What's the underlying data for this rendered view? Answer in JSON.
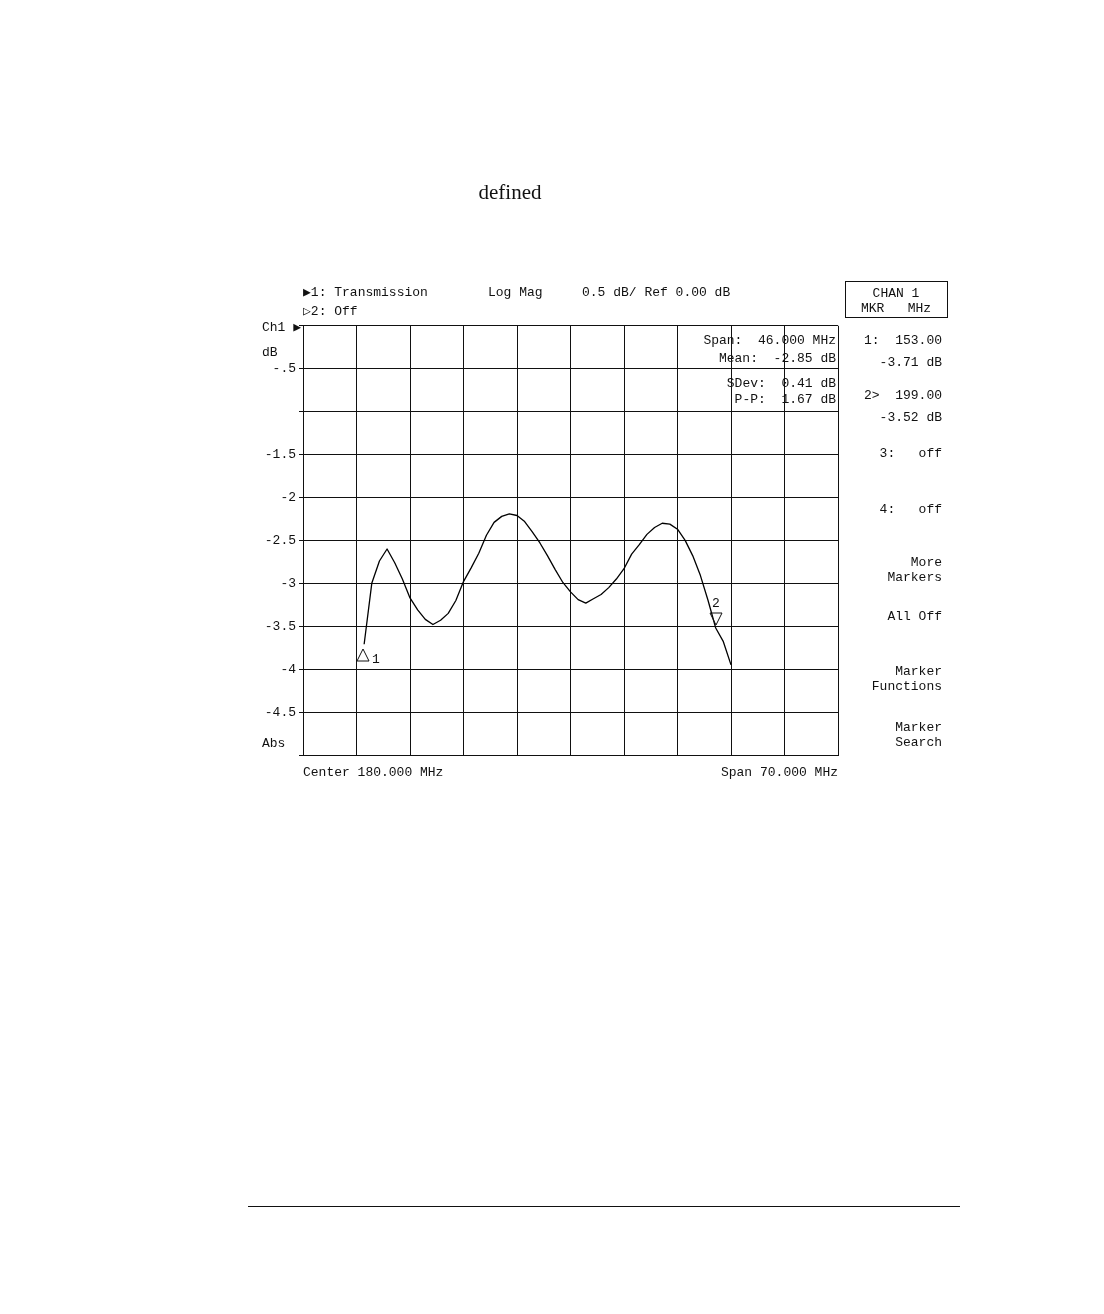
{
  "chart_data": {
    "type": "line",
    "categories": [
      null,
      null,
      null,
      null,
      null,
      null,
      null,
      null,
      null,
      null,
      null,
      null,
      null,
      null,
      null,
      null,
      null,
      null,
      null,
      null,
      null,
      null,
      null,
      null,
      null,
      null,
      null,
      null,
      null,
      null,
      null,
      null,
      null,
      null,
      null,
      null,
      null,
      null,
      null,
      null,
      null,
      null,
      null,
      null,
      null,
      null,
      null,
      null,
      null,
      null,
      null,
      null,
      null,
      null,
      null,
      null,
      null,
      null,
      null,
      null,
      null,
      null,
      null,
      null,
      null,
      null,
      null,
      null,
      null,
      null,
      null
    ],
    "ylim": [
      -5,
      0
    ],
    "yticks": [
      {
        "value": -5,
        "label": null
      },
      {
        "value": -4.5,
        "label": "-4.5"
      },
      {
        "value": -4,
        "label": "-4"
      },
      {
        "value": -3.5,
        "label": "-3.5"
      },
      {
        "value": -3,
        "label": "-3"
      },
      {
        "value": -2.5,
        "label": "-2.5"
      },
      {
        "value": -2,
        "label": "-2"
      },
      {
        "value": -1.5,
        "label": "-1.5"
      },
      {
        "value": -1,
        "label": null
      },
      {
        "value": -0.5,
        "label": "-.5"
      },
      {
        "value": 0,
        "label": null
      }
    ],
    "ylabel": "dB",
    "grid": true,
    "legend": false,
    "marker": "none",
    "line_style": "solid",
    "series": [
      {
        "color": "#000000",
        "values": [
          null,
          null,
          null,
          null,
          null,
          null,
          null,
          null,
          -3.71,
          -3.0,
          -2.74,
          -2.6,
          -2.76,
          -2.95,
          -3.17,
          -3.31,
          -3.42,
          -3.48,
          -3.43,
          -3.35,
          -3.2,
          -2.98,
          -2.82,
          -2.65,
          -2.44,
          -2.29,
          -2.22,
          -2.19,
          -2.21,
          -2.28,
          -2.4,
          -2.53,
          -2.68,
          -2.84,
          -2.99,
          -3.1,
          -3.19,
          -3.23,
          -3.18,
          -3.13,
          -3.05,
          -2.95,
          -2.83,
          -2.66,
          -2.55,
          -2.43,
          -2.35,
          -2.3,
          -2.31,
          -2.37,
          -2.5,
          -2.68,
          -2.91,
          -3.2,
          -3.52,
          -3.68,
          -3.95,
          null,
          null,
          null,
          null,
          null,
          null,
          null,
          null,
          null,
          null,
          null,
          null,
          null,
          null
        ]
      }
    ],
    "annotations": [
      "defined",
      "▶1: Transmission",
      "▷2: Off",
      "Log Mag",
      "0.5 dB/ Ref 0.00 dB",
      "Ch1 ▶",
      "Abs",
      "Center 180.000 MHz",
      "Span 70.000 MHz",
      "Span:  46.000 MHz",
      "Mean:  -2.85 dB",
      "SDev:  0.41 dB",
      "P-P:  1.67 dB",
      "CHAN 1",
      "MKR   MHz",
      "1:  153.00",
      "-3.71 dB",
      "2>  199.00",
      "-3.52 dB",
      "3:   off",
      "4:   off",
      "More Markers",
      "All Off",
      "Marker Functions",
      "Marker Search",
      "1",
      "2"
    ]
  }
}
